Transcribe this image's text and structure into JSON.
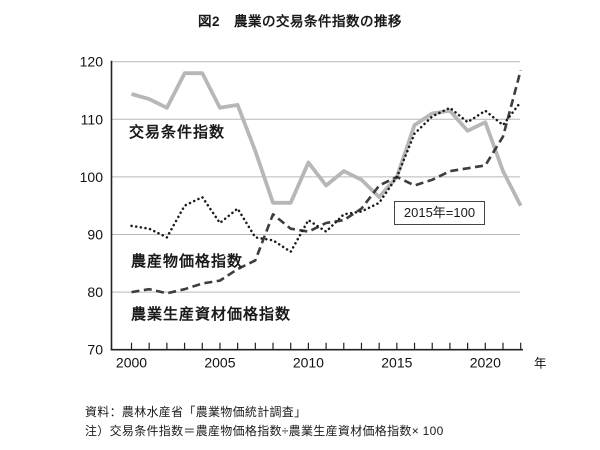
{
  "title": "図2　農業の交易条件指数の推移",
  "chart_data": {
    "type": "line",
    "x": [
      2000,
      2001,
      2002,
      2003,
      2004,
      2005,
      2006,
      2007,
      2008,
      2009,
      2010,
      2011,
      2012,
      2013,
      2014,
      2015,
      2016,
      2017,
      2018,
      2019,
      2020,
      2021,
      2022
    ],
    "x_tick_labels": [
      2000,
      2005,
      2010,
      2015,
      2020
    ],
    "xlabel": "年",
    "ylim": [
      70,
      120
    ],
    "y_ticks": [
      70,
      80,
      90,
      100,
      110,
      120
    ],
    "grid": true,
    "legend_position": "inline-labels",
    "annotation": "2015年=100",
    "series": [
      {
        "id": "trade-terms-index",
        "name": "交易条件指数",
        "style": "solid",
        "color": "#b7b7b7",
        "values": [
          114.4,
          113.5,
          112,
          118,
          118,
          112,
          112.5,
          104.5,
          95.5,
          95.5,
          102.5,
          98.5,
          101,
          99.5,
          96.5,
          100,
          109,
          111,
          111.5,
          108,
          109.5,
          101,
          95
        ]
      },
      {
        "id": "materials-price-index",
        "name": "農業生産資材価格指数",
        "style": "dashed",
        "color": "#3d3d3d",
        "values": [
          80,
          80.5,
          79.8,
          80.5,
          81.5,
          82,
          84,
          85.5,
          93.5,
          91,
          90.5,
          92,
          92.5,
          94.5,
          98.5,
          100,
          98.5,
          99.5,
          101,
          101.5,
          102,
          107,
          118.5
        ]
      },
      {
        "id": "product-price-index",
        "name": "農産物価格指数",
        "style": "dotted",
        "color": "#1c1c1c",
        "values": [
          91.5,
          91,
          89.5,
          95,
          96.5,
          92,
          94.5,
          89.5,
          89,
          87,
          92.5,
          90.5,
          93.5,
          94,
          95.5,
          100,
          107.5,
          110.5,
          112,
          109.5,
          111.5,
          109,
          113
        ]
      }
    ]
  },
  "footer": {
    "source": "資料：農林水産省「農業物価統計調査」",
    "note": "注）交易条件指数＝農産物価格指数÷農業生産資材価格指数× 100"
  }
}
